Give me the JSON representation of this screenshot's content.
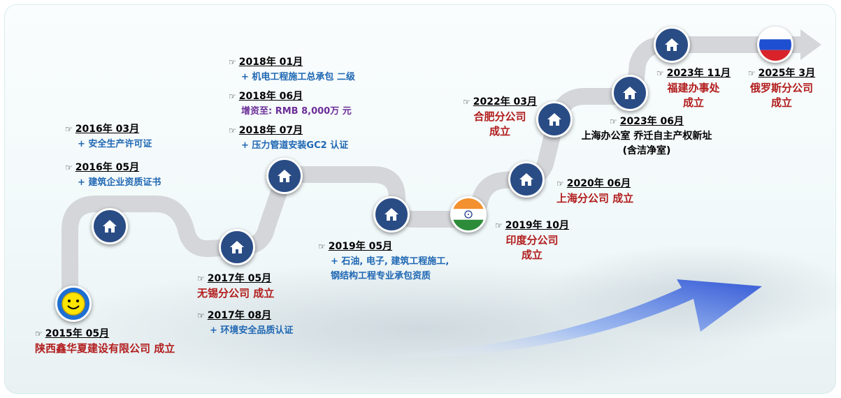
{
  "events": [
    {
      "id": "e2015",
      "date": "2015年 05月",
      "lines": [
        {
          "text": "陕西鑫华夏建设有限公司 成立",
          "style": "red"
        }
      ]
    },
    {
      "id": "e2016a",
      "date": "2016年 03月",
      "lines": [
        {
          "text": "+ 安全生产许可证",
          "style": "blue"
        }
      ]
    },
    {
      "id": "e2016b",
      "date": "2016年 05月",
      "lines": [
        {
          "text": "+ 建筑企业资质证书",
          "style": "blue"
        }
      ]
    },
    {
      "id": "e2017a",
      "date": "2017年 05月",
      "lines": [
        {
          "text": "无锡分公司 成立",
          "style": "red"
        }
      ]
    },
    {
      "id": "e2017b",
      "date": "2017年 08月",
      "lines": [
        {
          "text": "+ 环境安全品质认证",
          "style": "blue"
        }
      ]
    },
    {
      "id": "e2018a",
      "date": "2018年 01月",
      "lines": [
        {
          "text": "+ 机电工程施工总承包 二级",
          "style": "blue"
        }
      ]
    },
    {
      "id": "e2018b",
      "date": "2018年 06月",
      "lines": [
        {
          "text": "增资至: RMB 8,000万 元",
          "style": "purple"
        }
      ]
    },
    {
      "id": "e2018c",
      "date": "2018年 07月",
      "lines": [
        {
          "text": "+ 压力管道安装GC2 认证",
          "style": "blue"
        }
      ]
    },
    {
      "id": "e2019a",
      "date": "2019年 05月",
      "lines": [
        {
          "text": "+ 石油, 电子, 建筑工程施工,",
          "style": "blue"
        },
        {
          "text": "钢结构工程专业承包资质",
          "style": "blue"
        }
      ]
    },
    {
      "id": "e2019b",
      "date": "2019年 10月",
      "lines": [
        {
          "text": "印度分公司",
          "style": "red"
        },
        {
          "text": "成立",
          "style": "red"
        }
      ]
    },
    {
      "id": "e2020",
      "date": "2020年 06月",
      "lines": [
        {
          "text": "上海分公司 成立",
          "style": "red"
        }
      ]
    },
    {
      "id": "e2022",
      "date": "2022年 03月",
      "lines": [
        {
          "text": "合肥分公司",
          "style": "red"
        },
        {
          "text": "成立",
          "style": "red"
        }
      ]
    },
    {
      "id": "e2023a",
      "date": "2023年 06月",
      "lines": [
        {
          "text": "上海办公室 乔迁自主产权新址",
          "style": "black"
        },
        {
          "text": "(含洁净室)",
          "style": "black"
        }
      ]
    },
    {
      "id": "e2023b",
      "date": "2023年 11月",
      "lines": [
        {
          "text": "福建办事处",
          "style": "red"
        },
        {
          "text": "成立",
          "style": "red"
        }
      ]
    },
    {
      "id": "e2025",
      "date": "2025年 3月",
      "lines": [
        {
          "text": "俄罗斯分公司",
          "style": "red"
        },
        {
          "text": "成立",
          "style": "red"
        }
      ]
    }
  ],
  "pointer_glyph": "☞",
  "colors": {
    "node": "#2a4c85",
    "road": "#d4d6d9",
    "blue_text": "#1f67b3",
    "red_text": "#b21d1d",
    "purple_text": "#6c2f99",
    "arrow": "#3b66e0"
  },
  "icons": {
    "milestone": "house-icon",
    "start": "smiley-icon",
    "india": "india-flag-icon",
    "russia": "russia-flag-icon"
  }
}
